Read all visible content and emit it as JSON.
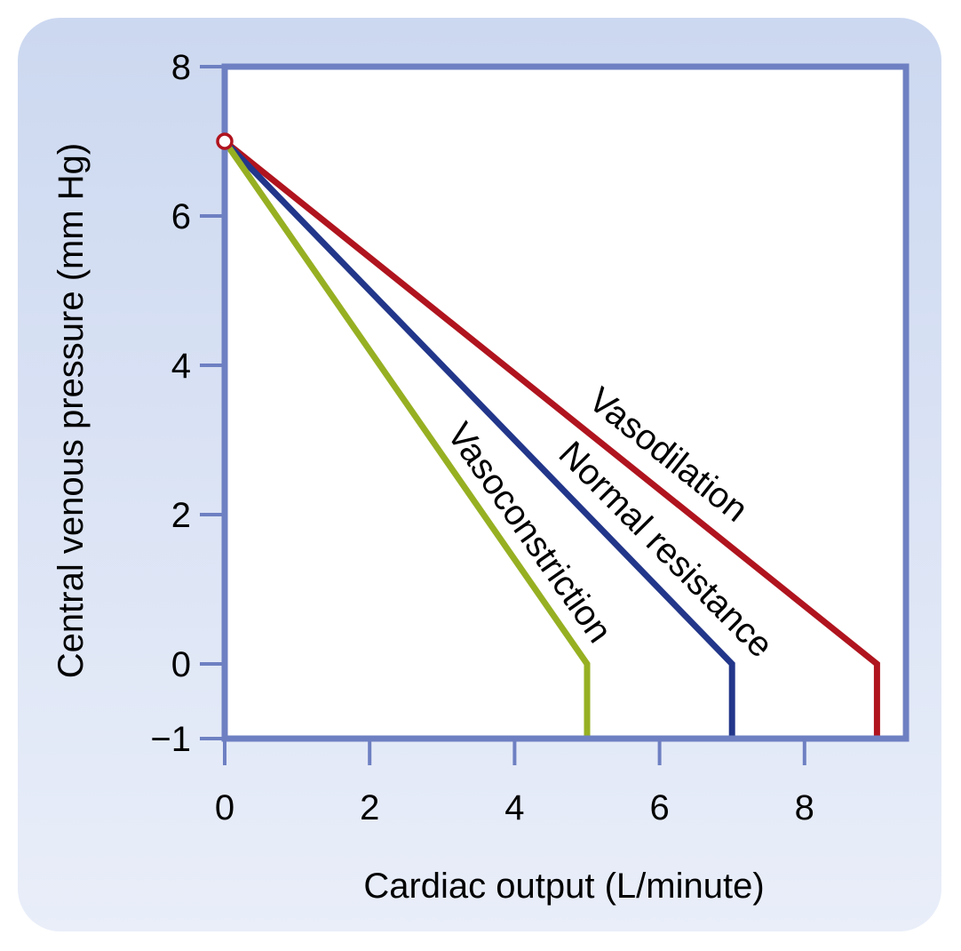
{
  "chart_data": {
    "type": "line",
    "title": "",
    "xlabel": "Cardiac output (L/minute)",
    "ylabel": "Central venous pressure (mm Hg)",
    "xlim": [
      0,
      9.4
    ],
    "ylim": [
      -1,
      8
    ],
    "xticks": [
      "0",
      "2",
      "4",
      "6",
      "8"
    ],
    "xtick_values": [
      0,
      2,
      4,
      6,
      8
    ],
    "yticks": [
      "8",
      "6",
      "4",
      "2",
      "0",
      "−1"
    ],
    "ytick_values": [
      8,
      6,
      4,
      2,
      0,
      -1
    ],
    "grid": false,
    "legend": "none",
    "series": [
      {
        "name": "Vasodilation",
        "color": "#b0141e",
        "points": [
          [
            0,
            7
          ],
          [
            9,
            0
          ],
          [
            9,
            -1
          ]
        ]
      },
      {
        "name": "Normal resistance",
        "color": "#22368a",
        "points": [
          [
            0,
            7
          ],
          [
            7,
            0
          ],
          [
            7,
            -1
          ]
        ]
      },
      {
        "name": "Vasoconstriction",
        "color": "#96b022",
        "points": [
          [
            0,
            7
          ],
          [
            5,
            0
          ],
          [
            5,
            -1
          ]
        ]
      }
    ],
    "marker": {
      "x": 0,
      "y": 7,
      "color": "#b0141e"
    },
    "axis_color": "#6e80c2"
  }
}
